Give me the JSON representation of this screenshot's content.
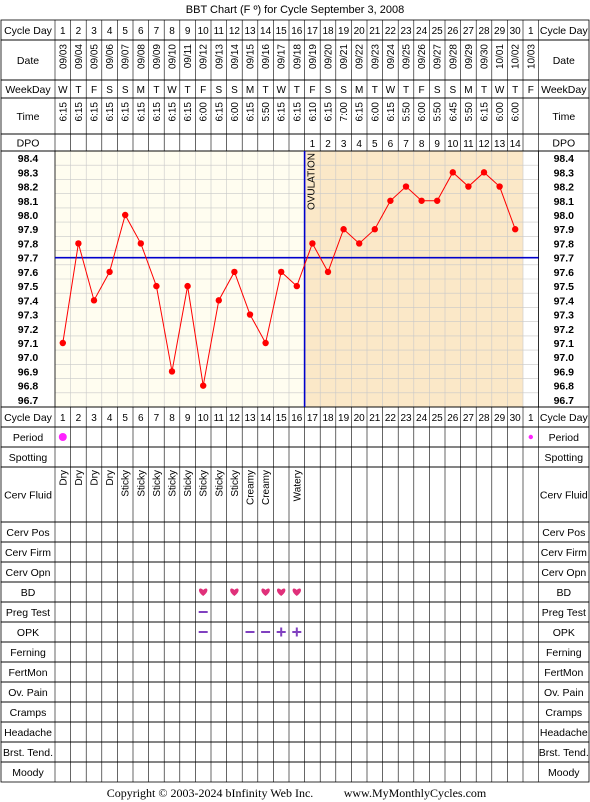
{
  "page": {
    "title": "BBT Chart (F º) for Cycle September 3, 2008",
    "copyright": "Copyright © 2003-2024 bInfinity Web Inc.",
    "site": "www.MyMonthlyCycles.com"
  },
  "labels": {
    "cycle_day": "Cycle Day",
    "date": "Date",
    "weekday": "WeekDay",
    "time": "Time",
    "dpo": "DPO",
    "ovulation": "OVULATION",
    "rows": [
      "Period",
      "Spotting",
      "Cerv Fluid",
      "Cerv Pos",
      "Cerv Firm",
      "Cerv Opn",
      "BD",
      "Preg Test",
      "OPK",
      "Ferning",
      "FertMon",
      "Ov. Pain",
      "Cramps",
      "Headache",
      "Brst. Tend.",
      "Moody"
    ]
  },
  "colors": {
    "grid_bg_pre": "#fffdf0",
    "grid_bg_post": "#fbe8c8",
    "line": "#ff0000",
    "coverline": "#0000cc",
    "heart": "#e0307a",
    "opk": "#8040c0",
    "period": "#ff22ff"
  },
  "chart_data": {
    "type": "line",
    "title": "BBT Chart (F º) for Cycle September 3, 2008",
    "cycle_days": [
      "1",
      "2",
      "3",
      "4",
      "5",
      "6",
      "7",
      "8",
      "9",
      "10",
      "11",
      "12",
      "13",
      "14",
      "15",
      "16",
      "17",
      "18",
      "19",
      "20",
      "21",
      "22",
      "23",
      "24",
      "25",
      "26",
      "27",
      "28",
      "29",
      "30",
      "1"
    ],
    "dates": [
      "09/03",
      "09/04",
      "09/05",
      "09/06",
      "09/07",
      "09/08",
      "09/09",
      "09/10",
      "09/11",
      "09/12",
      "09/13",
      "09/14",
      "09/15",
      "09/16",
      "09/17",
      "09/18",
      "09/19",
      "09/20",
      "09/21",
      "09/22",
      "09/23",
      "09/24",
      "09/25",
      "09/26",
      "09/27",
      "09/28",
      "09/29",
      "09/30",
      "10/01",
      "10/02",
      "10/03"
    ],
    "weekdays": [
      "W",
      "T",
      "F",
      "S",
      "S",
      "M",
      "T",
      "W",
      "T",
      "F",
      "S",
      "S",
      "M",
      "T",
      "W",
      "T",
      "F",
      "S",
      "S",
      "M",
      "T",
      "W",
      "T",
      "F",
      "S",
      "S",
      "M",
      "T",
      "W",
      "T",
      "F"
    ],
    "times": [
      "6:15",
      "6:15",
      "6:15",
      "6:15",
      "6:15",
      "6:15",
      "6:15",
      "6:15",
      "6:15",
      "6:00",
      "6:15",
      "6:00",
      "6:15",
      "5:50",
      "6:15",
      "6:15",
      "6:10",
      "6:15",
      "7:00",
      "6:15",
      "6:00",
      "6:15",
      "5:50",
      "6:00",
      "5:50",
      "6:45",
      "5:50",
      "6:15",
      "6:00",
      "6:00",
      ""
    ],
    "dpo": [
      "",
      "",
      "",
      "",
      "",
      "",
      "",
      "",
      "",
      "",
      "",
      "",
      "",
      "",
      "",
      "",
      "1",
      "2",
      "3",
      "4",
      "5",
      "6",
      "7",
      "8",
      "9",
      "10",
      "11",
      "12",
      "13",
      "14",
      ""
    ],
    "temps": [
      97.1,
      97.8,
      97.4,
      97.6,
      98.0,
      97.8,
      97.5,
      96.9,
      97.5,
      96.8,
      97.4,
      97.6,
      97.3,
      97.1,
      97.6,
      97.5,
      97.8,
      97.6,
      97.9,
      97.8,
      97.9,
      98.1,
      98.2,
      98.1,
      98.1,
      98.3,
      98.2,
      98.3,
      98.2,
      97.9,
      null
    ],
    "y_ticks": [
      "98.4",
      "98.3",
      "98.2",
      "98.1",
      "98.0",
      "97.9",
      "97.8",
      "97.7",
      "97.6",
      "97.5",
      "97.4",
      "97.3",
      "97.2",
      "97.1",
      "97.0",
      "96.9",
      "96.8",
      "96.7"
    ],
    "ylim": [
      96.7,
      98.4
    ],
    "coverline": 97.7,
    "ovulation_day_index": 15,
    "period": [
      "big",
      "",
      "",
      "",
      "",
      "",
      "",
      "",
      "",
      "",
      "",
      "",
      "",
      "",
      "",
      "",
      "",
      "",
      "",
      "",
      "",
      "",
      "",
      "",
      "",
      "",
      "",
      "",
      "",
      "",
      "small"
    ],
    "cerv_fluid": [
      "Dry",
      "Dry",
      "Dry",
      "Dry",
      "Sticky",
      "Sticky",
      "Sticky",
      "Sticky",
      "Sticky",
      "Sticky",
      "Sticky",
      "Sticky",
      "Creamy",
      "Creamy",
      "",
      "Watery",
      "",
      "",
      "",
      "",
      "",
      "",
      "",
      "",
      "",
      "",
      "",
      "",
      "",
      "",
      ""
    ],
    "bd": [
      "",
      "",
      "",
      "",
      "",
      "",
      "",
      "",
      "",
      "heart",
      "",
      "heart",
      "",
      "heart",
      "heart",
      "heart",
      "",
      "",
      "",
      "",
      "",
      "",
      "",
      "",
      "",
      "",
      "",
      "",
      "",
      "",
      ""
    ],
    "preg_test": [
      "",
      "",
      "",
      "",
      "",
      "",
      "",
      "",
      "",
      "minus",
      "",
      "",
      "",
      "",
      "",
      "",
      "",
      "",
      "",
      "",
      "",
      "",
      "",
      "",
      "",
      "",
      "",
      "",
      "",
      "",
      ""
    ],
    "opk": [
      "",
      "",
      "",
      "",
      "",
      "",
      "",
      "",
      "",
      "minus",
      "",
      "",
      "minus",
      "minus",
      "plus",
      "plus",
      "",
      "",
      "",
      "",
      "",
      "",
      "",
      "",
      "",
      "",
      "",
      "",
      "",
      "",
      ""
    ]
  }
}
